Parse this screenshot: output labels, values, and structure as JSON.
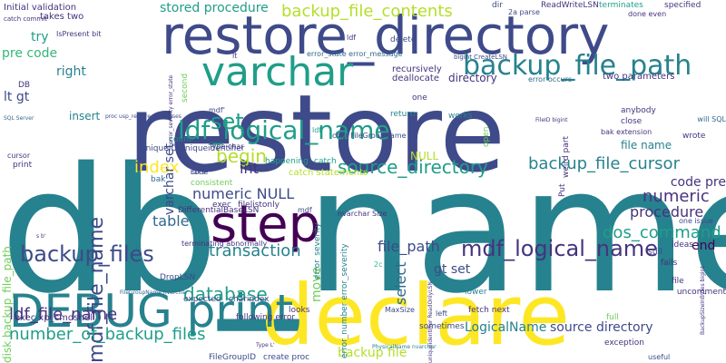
{
  "wordcloud": {
    "palette": {
      "dark_purple": "#46337e",
      "indigo": "#3e4a89",
      "blue": "#31688e",
      "teal": "#26828e",
      "green_teal": "#1f9e89",
      "green": "#35b779",
      "light_green": "#6ece58",
      "lime": "#b5de2b",
      "yellow": "#fde725",
      "deep": "#440154"
    },
    "words": [
      {
        "text": "db_name",
        "color": "teal"
      },
      {
        "text": "restore",
        "color": "indigo"
      },
      {
        "text": "declare",
        "color": "yellow"
      },
      {
        "text": "restore_directory",
        "color": "indigo"
      },
      {
        "text": "step",
        "color": "deep"
      },
      {
        "text": "DEBUG print",
        "color": "teal"
      },
      {
        "text": "varchar",
        "color": "green_teal"
      },
      {
        "text": "backup_file_path",
        "color": "teal"
      },
      {
        "text": "ldf_logical_name",
        "color": "green_teal"
      },
      {
        "text": "mdf_logical_name",
        "color": "dark_purple"
      },
      {
        "text": "backup_files",
        "color": "indigo"
      },
      {
        "text": "source_directory",
        "color": "green_teal"
      },
      {
        "text": "backup_file_cursor",
        "color": "teal"
      },
      {
        "text": "mdf_file_name",
        "color": "indigo"
      },
      {
        "text": "number_of_backup_files",
        "color": "green_teal"
      },
      {
        "text": "ldf_file_name",
        "color": "dark_purple"
      },
      {
        "text": "database",
        "color": "green_teal"
      },
      {
        "text": "transaction",
        "color": "teal"
      },
      {
        "text": "dos_command",
        "color": "green_teal"
      },
      {
        "text": "backup_file_contents",
        "color": "lime"
      },
      {
        "text": "stored procedure",
        "color": "green_teal"
      },
      {
        "text": "set",
        "color": "green_teal"
      },
      {
        "text": "begin",
        "color": "lime"
      },
      {
        "text": "index",
        "color": "yellow"
      },
      {
        "text": "int",
        "color": "dark_purple"
      },
      {
        "text": "numeric NULL",
        "color": "indigo"
      },
      {
        "text": "table",
        "color": "blue"
      },
      {
        "text": "numeric",
        "color": "dark_purple"
      },
      {
        "text": "procedure",
        "color": "dark_purple"
      },
      {
        "text": "end",
        "color": "deep"
      },
      {
        "text": "code pre",
        "color": "dark_purple"
      },
      {
        "text": "file_path",
        "color": "indigo"
      },
      {
        "text": "gt set",
        "color": "indigo"
      },
      {
        "text": "select",
        "color": "blue"
      },
      {
        "text": "LogicalName",
        "color": "teal"
      },
      {
        "text": "backup file",
        "color": "lime"
      },
      {
        "text": "source directory",
        "color": "indigo"
      },
      {
        "text": "right",
        "color": "teal"
      },
      {
        "text": "insert",
        "color": "teal"
      },
      {
        "text": "varchar set",
        "color": "indigo"
      },
      {
        "text": "try",
        "color": "green_teal"
      },
      {
        "text": "pre code",
        "color": "green"
      },
      {
        "text": "lt gt",
        "color": "indigo"
      },
      {
        "text": "directory",
        "color": "dark_purple"
      },
      {
        "text": "file name",
        "color": "teal"
      },
      {
        "text": "move",
        "color": "light_green"
      },
      {
        "text": "NULL",
        "color": "lime"
      },
      {
        "text": "catch statements",
        "color": "lime"
      },
      {
        "text": "disk backup_file_path",
        "color": "light_green"
      },
      {
        "text": "exec xp_cmdshell",
        "color": "dark_purple"
      },
      {
        "text": "recursively",
        "color": "dark_purple"
      },
      {
        "text": "deallocate",
        "color": "dark_purple"
      },
      {
        "text": "two parameters",
        "color": "dark_purple"
      },
      {
        "text": "Initial validation",
        "color": "dark_purple"
      },
      {
        "text": "takes two",
        "color": "dark_purple"
      },
      {
        "text": "ReadWriteLSN",
        "color": "dark_purple"
      },
      {
        "text": "terminates",
        "color": "green_teal"
      },
      {
        "text": "specified",
        "color": "dark_purple"
      },
      {
        "text": "done even",
        "color": "dark_purple"
      },
      {
        "text": "dir",
        "color": "indigo"
      },
      {
        "text": "2a parse",
        "color": "indigo"
      },
      {
        "text": "delete",
        "color": "indigo"
      },
      {
        "text": "one",
        "color": "dark_purple"
      },
      {
        "text": "return",
        "color": "teal"
      },
      {
        "text": "works",
        "color": "teal"
      },
      {
        "text": "anybody",
        "color": "dark_purple"
      },
      {
        "text": "close",
        "color": "dark_purple"
      },
      {
        "text": "bak extension",
        "color": "dark_purple"
      },
      {
        "text": "wrote",
        "color": "dark_purple"
      },
      {
        "text": "happening",
        "color": "green_teal"
      },
      {
        "text": "catch",
        "color": "green_teal"
      },
      {
        "text": "consistent",
        "color": "light_green"
      },
      {
        "text": "bak",
        "color": "blue"
      },
      {
        "text": "count",
        "color": "teal"
      },
      {
        "text": "mdf",
        "color": "indigo"
      },
      {
        "text": "filelistonly",
        "color": "dark_purple"
      },
      {
        "text": "exec",
        "color": "dark_purple"
      },
      {
        "text": "DifferentialBaseLSN",
        "color": "dark_purple"
      },
      {
        "text": "terminating abnormally",
        "color": "dark_purple"
      },
      {
        "text": "nvarchar Size",
        "color": "dark_purple"
      },
      {
        "text": "DropLSN",
        "color": "indigo"
      },
      {
        "text": "expected",
        "color": "indigo"
      },
      {
        "text": "charindex",
        "color": "indigo"
      },
      {
        "text": "following error",
        "color": "dark_purple"
      },
      {
        "text": "looks",
        "color": "dark_purple"
      },
      {
        "text": "error_severity",
        "color": "teal"
      },
      {
        "text": "error_number error_severity",
        "color": "teal"
      },
      {
        "text": "MaxSize",
        "color": "indigo"
      },
      {
        "text": "sometimes",
        "color": "indigo"
      },
      {
        "text": "fetch next",
        "color": "dark_purple"
      },
      {
        "text": "left",
        "color": "indigo"
      },
      {
        "text": "lower",
        "color": "teal"
      },
      {
        "text": "Put",
        "color": "dark_purple"
      },
      {
        "text": "still",
        "color": "indigo"
      },
      {
        "text": "fails",
        "color": "dark_purple"
      },
      {
        "text": "ideas",
        "color": "dark_purple"
      },
      {
        "text": "file",
        "color": "dark_purple"
      },
      {
        "text": "uncomment",
        "color": "dark_purple"
      },
      {
        "text": "exception",
        "color": "dark_purple"
      },
      {
        "text": "full",
        "color": "light_green"
      },
      {
        "text": "useful",
        "color": "indigo"
      },
      {
        "text": "create proc",
        "color": "indigo"
      },
      {
        "text": "FileGroupID",
        "color": "indigo"
      },
      {
        "text": "one issue",
        "color": "indigo"
      },
      {
        "text": "weird part",
        "color": "dark_purple"
      },
      {
        "text": "open",
        "color": "light_green"
      },
      {
        "text": "second",
        "color": "light_green"
      },
      {
        "text": "error occurs",
        "color": "blue"
      },
      {
        "text": "error_state error_message",
        "color": "blue"
      },
      {
        "text": "char FileGroupName",
        "color": "indigo"
      },
      {
        "text": "Type char",
        "color": "dark_purple"
      },
      {
        "text": "mdf'",
        "color": "indigo"
      },
      {
        "text": "ldf'",
        "color": "green_teal"
      },
      {
        "text": "code",
        "color": "indigo"
      },
      {
        "text": "bak s",
        "color": "indigo"
      },
      {
        "text": "IsPresent bit",
        "color": "dark_purple"
      },
      {
        "text": "ldf",
        "color": "dark_purple"
      },
      {
        "text": "lt",
        "color": "dark_purple"
      },
      {
        "text": "DB",
        "color": "dark_purple"
      },
      {
        "text": "print",
        "color": "dark_purple"
      },
      {
        "text": "cursor",
        "color": "dark_purple"
      },
      {
        "text": "s b'",
        "color": "dark_purple"
      },
      {
        "text": "Type L'",
        "color": "dark_purple"
      },
      {
        "text": "catch commit",
        "color": "dark_purple"
      },
      {
        "text": "FileGroupName nvarchar",
        "color": "blue"
      },
      {
        "text": "uniqueidentifier ReadOnlyLSN",
        "color": "dark_purple"
      },
      {
        "text": "PhysicalName nvarchar",
        "color": "teal"
      },
      {
        "text": "error_severity error_state",
        "color": "dark_purple"
      },
      {
        "text": "proc usp_restore_databases",
        "color": "indigo"
      },
      {
        "text": "SQL Server",
        "color": "blue"
      },
      {
        "text": "BackupSizeInBytes bigint",
        "color": "dark_purple"
      },
      {
        "text": "UniqueID uniqueidentifier",
        "color": "indigo"
      },
      {
        "text": "bigint CreateLSN",
        "color": "indigo"
      },
      {
        "text": "FileID bigint",
        "color": "dark_purple"
      },
      {
        "text": "will SQL",
        "color": "blue"
      },
      {
        "text": "2c",
        "color": "green"
      },
      {
        "text": "logical names",
        "color": "teal"
      }
    ]
  }
}
